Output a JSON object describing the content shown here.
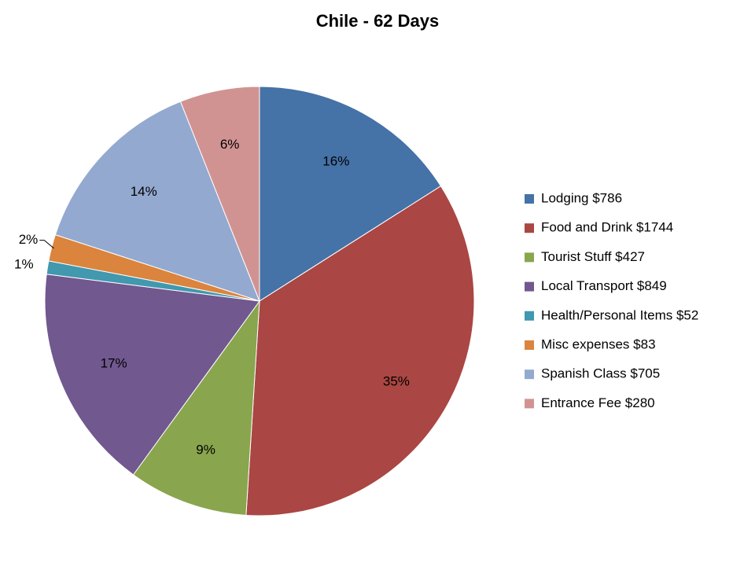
{
  "chart_data": {
    "type": "pie",
    "title": "Chile - 62 Days",
    "categories": [
      "Lodging $786",
      "Food and Drink $1744",
      "Tourist Stuff $427",
      "Local Transport $849",
      "Health/Personal Items $52",
      "Misc expenses $83",
      "Spanish Class $705",
      "Entrance Fee $280"
    ],
    "values": [
      16,
      35,
      9,
      17,
      1,
      2,
      14,
      6
    ],
    "value_labels": [
      "16%",
      "35%",
      "9%",
      "17%",
      "1%",
      "2%",
      "14%",
      "6%"
    ],
    "colors": [
      "#4572a7",
      "#aa4643",
      "#89a54e",
      "#71588f",
      "#4198af",
      "#db843d",
      "#93a9cf",
      "#d19392"
    ],
    "legend": "right"
  }
}
